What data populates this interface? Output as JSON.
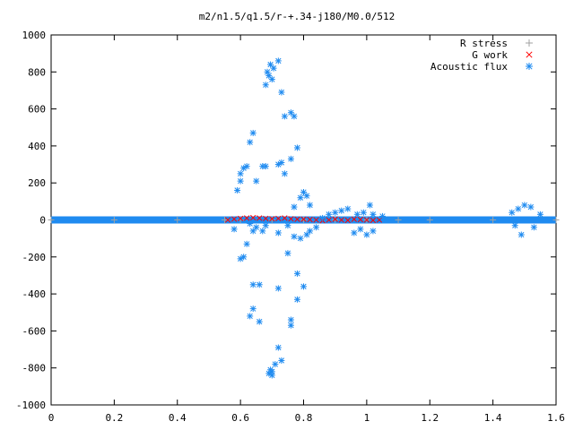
{
  "chart_data": {
    "type": "scatter",
    "title": "m2/n1.5/q1.5/r-+.34-j180/M0.0/512",
    "xlim": [
      0,
      1.6
    ],
    "ylim": [
      -1000,
      1000
    ],
    "xticks": [
      "0",
      "0.2",
      "0.4",
      "0.6",
      "0.8",
      "1",
      "1.2",
      "1.4",
      "1.6"
    ],
    "yticks": [
      "1000",
      "800",
      "600",
      "400",
      "200",
      "0",
      "-200",
      "-400",
      "-600",
      "-800",
      "-1000"
    ],
    "legend_position": "top-right",
    "series": [
      {
        "name": "R stress",
        "marker": "plus",
        "color": "#a0a0a0",
        "x": [
          0.0,
          0.2,
          0.4,
          0.55,
          0.6,
          0.7,
          0.8,
          0.9,
          1.0,
          1.1,
          1.2,
          1.4,
          1.6
        ],
        "y": [
          0,
          0,
          0,
          0,
          0,
          0,
          0,
          0,
          0,
          0,
          0,
          0,
          0
        ]
      },
      {
        "name": "G work",
        "marker": "cross",
        "color": "#ff0000",
        "x": [
          0.56,
          0.58,
          0.6,
          0.62,
          0.64,
          0.66,
          0.68,
          0.7,
          0.72,
          0.74,
          0.76,
          0.78,
          0.8,
          0.82,
          0.84,
          0.86,
          0.88,
          0.9,
          0.92,
          0.94,
          0.96,
          0.98,
          1.0,
          1.02,
          1.04
        ],
        "y": [
          0,
          5,
          8,
          10,
          12,
          10,
          8,
          6,
          8,
          10,
          6,
          4,
          4,
          2,
          0,
          -4,
          0,
          4,
          0,
          -2,
          4,
          2,
          0,
          -2,
          0
        ]
      },
      {
        "name": "Acoustic flux",
        "marker": "star",
        "color": "#1f8bf0",
        "x": [
          0.685,
          0.69,
          0.695,
          0.7,
          0.705,
          0.72,
          0.68,
          0.73,
          0.74,
          0.76,
          0.77,
          0.78,
          0.64,
          0.63,
          0.61,
          0.62,
          0.6,
          0.6,
          0.59,
          0.65,
          0.67,
          0.68,
          0.72,
          0.73,
          0.74,
          0.76,
          0.8,
          0.81,
          0.82,
          0.79,
          0.77,
          0.6,
          0.61,
          0.58,
          0.62,
          0.64,
          0.66,
          0.64,
          0.63,
          0.65,
          0.67,
          0.66,
          0.72,
          0.73,
          0.76,
          0.78,
          0.8,
          0.72,
          0.75,
          0.78,
          0.63,
          0.64,
          0.68,
          0.75,
          0.77,
          0.79,
          0.72,
          0.76,
          0.71,
          0.7,
          0.69,
          0.695,
          0.7,
          0.82,
          0.81,
          0.84,
          0.86,
          0.88,
          0.9,
          0.92,
          0.94,
          0.96,
          0.98,
          1.0,
          1.02,
          1.01,
          0.99,
          1.02,
          1.05,
          0.97,
          1.46,
          1.48,
          1.5,
          1.52,
          1.47,
          1.49,
          1.53,
          1.55
        ],
        "y": [
          800,
          780,
          840,
          760,
          820,
          860,
          730,
          690,
          560,
          580,
          560,
          390,
          470,
          420,
          280,
          290,
          250,
          210,
          160,
          210,
          290,
          290,
          300,
          310,
          250,
          330,
          150,
          130,
          80,
          120,
          70,
          -210,
          -200,
          -50,
          -130,
          -350,
          -350,
          -480,
          -520,
          -40,
          -60,
          -550,
          -690,
          -760,
          -540,
          -430,
          -360,
          -70,
          -180,
          -290,
          -20,
          -60,
          -30,
          -30,
          -90,
          -100,
          -370,
          -570,
          -780,
          -820,
          -830,
          -810,
          -840,
          -60,
          -80,
          -40,
          10,
          30,
          40,
          50,
          60,
          -70,
          -50,
          -80,
          30,
          80,
          40,
          -60,
          20,
          30,
          40,
          60,
          80,
          70,
          -30,
          -80,
          -40,
          30
        ]
      }
    ]
  }
}
